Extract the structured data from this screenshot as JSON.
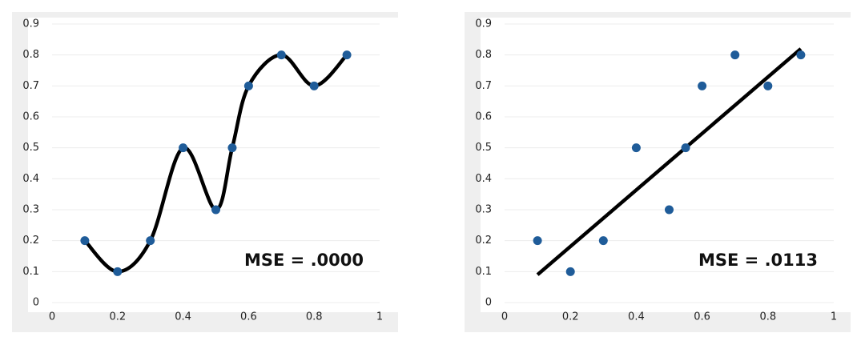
{
  "chart_data": [
    {
      "type": "scatter",
      "fit": "spline",
      "x": [
        0.1,
        0.2,
        0.3,
        0.4,
        0.5,
        0.55,
        0.6,
        0.7,
        0.8,
        0.9
      ],
      "values": [
        0.2,
        0.1,
        0.2,
        0.5,
        0.3,
        0.5,
        0.7,
        0.8,
        0.7,
        0.8
      ],
      "color": "#1f5c99",
      "line_color": "#000000",
      "xlim": [
        0,
        1
      ],
      "ylim": [
        0,
        0.9
      ],
      "xticks": [
        0,
        0.2,
        0.4,
        0.6,
        0.8,
        1
      ],
      "yticks": [
        0,
        0.1,
        0.2,
        0.3,
        0.4,
        0.5,
        0.6,
        0.7,
        0.8,
        0.9
      ],
      "grid": true,
      "annotation": "MSE = .0000"
    },
    {
      "type": "scatter",
      "fit": "line",
      "x": [
        0.1,
        0.2,
        0.3,
        0.4,
        0.5,
        0.55,
        0.6,
        0.7,
        0.8,
        0.9
      ],
      "values": [
        0.2,
        0.1,
        0.2,
        0.5,
        0.3,
        0.5,
        0.7,
        0.8,
        0.7,
        0.8
      ],
      "fit_line": {
        "x": [
          0.1,
          0.9
        ],
        "values": [
          0.09,
          0.82
        ]
      },
      "color": "#1f5c99",
      "line_color": "#000000",
      "xlim": [
        0,
        1
      ],
      "ylim": [
        0,
        0.9
      ],
      "xticks": [
        0,
        0.2,
        0.4,
        0.6,
        0.8,
        1
      ],
      "yticks": [
        0,
        0.1,
        0.2,
        0.3,
        0.4,
        0.5,
        0.6,
        0.7,
        0.8,
        0.9
      ],
      "grid": true,
      "annotation": "MSE = .0113"
    }
  ]
}
